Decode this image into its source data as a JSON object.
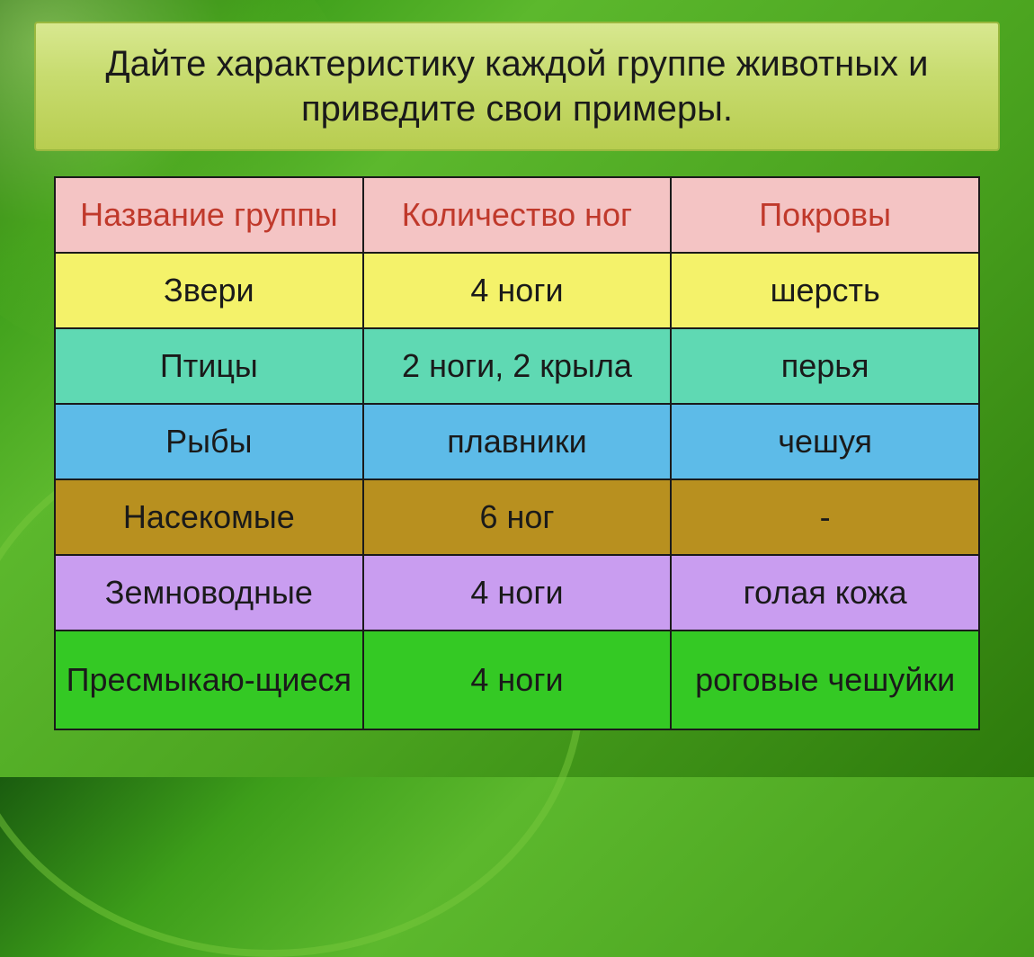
{
  "title": "Дайте характеристику каждой группе животных и приведите свои примеры.",
  "table": {
    "columns": [
      "Название группы",
      "Количество ног",
      "Покровы"
    ],
    "rows": [
      {
        "cells": [
          "Звери",
          "4 ноги",
          "шерсть"
        ],
        "bg": "#f4f26a"
      },
      {
        "cells": [
          "Птицы",
          "2 ноги, 2 крыла",
          "перья"
        ],
        "bg": "#5fd9b3"
      },
      {
        "cells": [
          "Рыбы",
          "плавники",
          "чешуя"
        ],
        "bg": "#5dbbe8"
      },
      {
        "cells": [
          "Насекомые",
          "6 ног",
          "-"
        ],
        "bg": "#b8901f"
      },
      {
        "cells": [
          "Земноводные",
          "4 ноги",
          "голая кожа"
        ],
        "bg": "#c99df0"
      },
      {
        "cells": [
          "Пресмыкаю-щиеся",
          "4 ноги",
          "роговые чешуйки"
        ],
        "bg": "#34c924",
        "tall": true
      }
    ],
    "header_bg": "#f4c4c4",
    "header_text_color": "#c0392b",
    "border_color": "#1a1a1a",
    "cell_fontsize": 36
  },
  "title_box": {
    "bg_gradient_top": "#d8e890",
    "bg_gradient_bottom": "#b8cd50",
    "border_color": "#9ab83f",
    "fontsize": 40,
    "text_color": "#1a1a1a"
  },
  "background": {
    "gradient_colors": [
      "#1a5c0f",
      "#3d9e1a",
      "#5cb82d",
      "#4aa31f",
      "#2d7a0c"
    ]
  }
}
